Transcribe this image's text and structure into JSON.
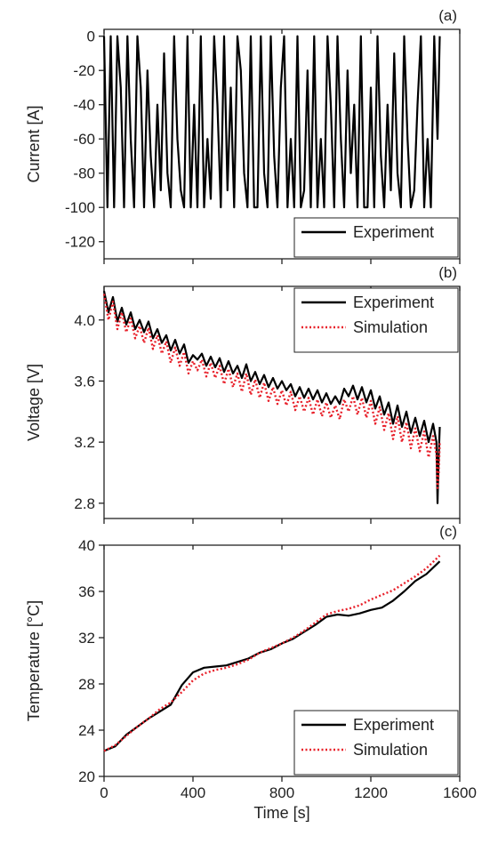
{
  "chart_data": [
    {
      "type": "line",
      "panel_label": "(a)",
      "ylabel": "Current [A]",
      "ylim": [
        -130,
        4
      ],
      "yticks": [
        0,
        -20,
        -40,
        -60,
        -80,
        -100,
        -120
      ],
      "ytick_labels": [
        "0",
        "-20",
        "-40",
        "-60",
        "-80",
        "-100",
        "-120"
      ],
      "legend_position": "bottom-right",
      "series": [
        {
          "name": "Experiment",
          "color": "#000000",
          "style": "solid",
          "x": [
            0,
            15,
            30,
            45,
            60,
            75,
            90,
            105,
            120,
            135,
            150,
            165,
            180,
            195,
            210,
            225,
            240,
            255,
            270,
            285,
            300,
            315,
            330,
            345,
            360,
            375,
            390,
            405,
            420,
            435,
            450,
            465,
            480,
            495,
            510,
            525,
            540,
            555,
            570,
            585,
            600,
            615,
            630,
            645,
            660,
            675,
            690,
            705,
            720,
            735,
            750,
            765,
            780,
            795,
            810,
            825,
            840,
            855,
            870,
            885,
            900,
            915,
            930,
            945,
            960,
            975,
            990,
            1005,
            1020,
            1035,
            1050,
            1065,
            1080,
            1095,
            1110,
            1125,
            1140,
            1155,
            1170,
            1185,
            1200,
            1215,
            1230,
            1245,
            1260,
            1275,
            1290,
            1305,
            1320,
            1335,
            1350,
            1365,
            1380,
            1395,
            1410,
            1425,
            1440,
            1455,
            1470,
            1485,
            1500,
            1510
          ],
          "y": [
            0,
            -100,
            0,
            -100,
            0,
            -30,
            -100,
            0,
            -60,
            -100,
            0,
            -30,
            -100,
            -20,
            -70,
            -100,
            -40,
            -90,
            -10,
            -80,
            -100,
            0,
            -60,
            -90,
            -100,
            0,
            -100,
            -40,
            -100,
            0,
            -100,
            -60,
            -95,
            0,
            -40,
            -100,
            0,
            -90,
            -30,
            -100,
            0,
            -20,
            -80,
            -100,
            0,
            -100,
            -100,
            0,
            -80,
            -100,
            0,
            -70,
            -100,
            -30,
            0,
            -100,
            -60,
            -100,
            0,
            -100,
            -90,
            -20,
            -100,
            0,
            -100,
            -60,
            -100,
            0,
            -40,
            -100,
            0,
            -60,
            -100,
            -20,
            -80,
            -40,
            -100,
            0,
            -100,
            -100,
            -30,
            -100,
            0,
            -70,
            -100,
            -40,
            -90,
            -10,
            -80,
            -100,
            0,
            -60,
            -100,
            -90,
            -40,
            0,
            -100,
            -60,
            -100,
            0,
            -60,
            0
          ]
        }
      ]
    },
    {
      "type": "line",
      "panel_label": "(b)",
      "ylabel": "Voltage [V]",
      "ylim": [
        2.7,
        4.22
      ],
      "yticks": [
        2.8,
        3.2,
        3.6,
        4.0
      ],
      "ytick_labels": [
        "2.8",
        "3.2",
        "3.6",
        "4.0"
      ],
      "legend_position": "top-right",
      "series": [
        {
          "name": "Experiment",
          "color": "#000000",
          "style": "solid",
          "x": [
            0,
            20,
            40,
            60,
            80,
            100,
            120,
            140,
            160,
            180,
            200,
            220,
            240,
            260,
            280,
            300,
            320,
            340,
            360,
            380,
            400,
            420,
            440,
            460,
            480,
            500,
            520,
            540,
            560,
            580,
            600,
            620,
            640,
            660,
            680,
            700,
            720,
            740,
            760,
            780,
            800,
            820,
            840,
            860,
            880,
            900,
            920,
            940,
            960,
            980,
            1000,
            1020,
            1040,
            1060,
            1080,
            1100,
            1120,
            1140,
            1160,
            1180,
            1200,
            1220,
            1240,
            1260,
            1280,
            1300,
            1320,
            1340,
            1360,
            1380,
            1400,
            1420,
            1440,
            1460,
            1480,
            1495,
            1500,
            1505,
            1510
          ],
          "y": [
            4.19,
            4.05,
            4.15,
            3.99,
            4.08,
            3.97,
            4.05,
            3.94,
            4.0,
            3.92,
            3.99,
            3.88,
            3.94,
            3.85,
            3.9,
            3.8,
            3.87,
            3.78,
            3.84,
            3.72,
            3.77,
            3.74,
            3.78,
            3.7,
            3.76,
            3.69,
            3.75,
            3.66,
            3.73,
            3.65,
            3.7,
            3.62,
            3.71,
            3.6,
            3.66,
            3.58,
            3.64,
            3.56,
            3.62,
            3.55,
            3.6,
            3.54,
            3.58,
            3.5,
            3.56,
            3.49,
            3.55,
            3.48,
            3.54,
            3.46,
            3.52,
            3.45,
            3.5,
            3.45,
            3.55,
            3.5,
            3.57,
            3.48,
            3.56,
            3.46,
            3.54,
            3.42,
            3.5,
            3.38,
            3.46,
            3.32,
            3.44,
            3.3,
            3.4,
            3.26,
            3.36,
            3.24,
            3.34,
            3.2,
            3.32,
            3.2,
            2.8,
            3.1,
            3.3
          ]
        },
        {
          "name": "Simulation",
          "color": "#e8202a",
          "style": "dotted",
          "x": [
            0,
            20,
            40,
            60,
            80,
            100,
            120,
            140,
            160,
            180,
            200,
            220,
            240,
            260,
            280,
            300,
            320,
            340,
            360,
            380,
            400,
            420,
            440,
            460,
            480,
            500,
            520,
            540,
            560,
            580,
            600,
            620,
            640,
            660,
            680,
            700,
            720,
            740,
            760,
            780,
            800,
            820,
            840,
            860,
            880,
            900,
            920,
            940,
            960,
            980,
            1000,
            1020,
            1040,
            1060,
            1080,
            1100,
            1120,
            1140,
            1160,
            1180,
            1200,
            1220,
            1240,
            1260,
            1280,
            1300,
            1320,
            1340,
            1360,
            1380,
            1400,
            1420,
            1440,
            1460,
            1480,
            1495,
            1500,
            1505,
            1510
          ],
          "y": [
            4.17,
            4.0,
            4.12,
            3.94,
            4.05,
            3.92,
            4.01,
            3.88,
            3.96,
            3.85,
            3.95,
            3.81,
            3.9,
            3.78,
            3.86,
            3.72,
            3.82,
            3.7,
            3.79,
            3.65,
            3.73,
            3.67,
            3.74,
            3.63,
            3.72,
            3.62,
            3.7,
            3.58,
            3.68,
            3.56,
            3.65,
            3.53,
            3.65,
            3.51,
            3.61,
            3.49,
            3.59,
            3.47,
            3.56,
            3.45,
            3.54,
            3.44,
            3.53,
            3.41,
            3.5,
            3.4,
            3.49,
            3.38,
            3.48,
            3.37,
            3.46,
            3.36,
            3.44,
            3.35,
            3.48,
            3.4,
            3.5,
            3.38,
            3.49,
            3.36,
            3.47,
            3.32,
            3.43,
            3.28,
            3.39,
            3.22,
            3.37,
            3.2,
            3.33,
            3.16,
            3.29,
            3.14,
            3.27,
            3.1,
            3.24,
            3.12,
            2.9,
            3.0,
            3.2
          ]
        }
      ]
    },
    {
      "type": "line",
      "panel_label": "(c)",
      "ylabel": "Temperature [°C]",
      "xlabel": "Time [s]",
      "xlim": [
        0,
        1600
      ],
      "xticks": [
        0,
        400,
        800,
        1200,
        1600
      ],
      "xtick_labels": [
        "0",
        "400",
        "800",
        "1200",
        "1600"
      ],
      "ylim": [
        20,
        40
      ],
      "yticks": [
        20,
        24,
        28,
        32,
        36,
        40
      ],
      "ytick_labels": [
        "20",
        "24",
        "28",
        "32",
        "36",
        "40"
      ],
      "legend_position": "bottom-right",
      "series": [
        {
          "name": "Experiment",
          "color": "#000000",
          "style": "solid",
          "x": [
            0,
            50,
            100,
            150,
            200,
            250,
            300,
            350,
            400,
            450,
            500,
            550,
            600,
            650,
            700,
            750,
            800,
            850,
            900,
            950,
            1000,
            1050,
            1100,
            1150,
            1200,
            1250,
            1300,
            1350,
            1400,
            1450,
            1510
          ],
          "y": [
            22.2,
            22.6,
            23.6,
            24.3,
            25.0,
            25.6,
            26.2,
            27.9,
            29.0,
            29.4,
            29.5,
            29.6,
            29.9,
            30.2,
            30.7,
            31.0,
            31.5,
            31.9,
            32.5,
            33.1,
            33.8,
            34.0,
            33.9,
            34.1,
            34.4,
            34.6,
            35.2,
            36.0,
            36.9,
            37.5,
            38.6
          ]
        },
        {
          "name": "Simulation",
          "color": "#e8202a",
          "style": "dotted",
          "x": [
            0,
            50,
            100,
            150,
            200,
            250,
            300,
            350,
            400,
            450,
            500,
            550,
            600,
            650,
            700,
            750,
            800,
            850,
            900,
            950,
            1000,
            1050,
            1100,
            1150,
            1200,
            1250,
            1300,
            1350,
            1400,
            1450,
            1510
          ],
          "y": [
            22.2,
            22.7,
            23.5,
            24.3,
            25.0,
            25.8,
            26.4,
            27.3,
            28.3,
            28.9,
            29.2,
            29.4,
            29.7,
            30.1,
            30.7,
            31.1,
            31.5,
            32.0,
            32.6,
            33.3,
            34.0,
            34.3,
            34.5,
            34.8,
            35.3,
            35.7,
            36.1,
            36.7,
            37.3,
            38.0,
            39.1
          ]
        }
      ]
    }
  ]
}
